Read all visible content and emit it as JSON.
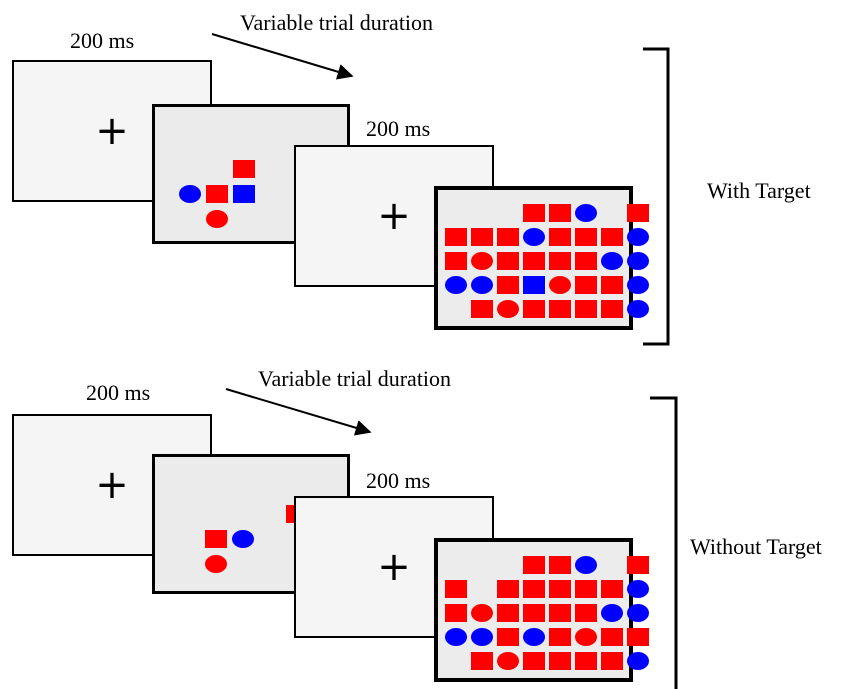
{
  "colors": {
    "red": "#ff0000",
    "blue": "#0000ff",
    "frame": "#000000"
  },
  "fixation_symbol": "+",
  "conditions": [
    {
      "condition_label": "With Target",
      "duration_first": "200 ms",
      "duration_variable": "Variable trial duration",
      "duration_second": "200 ms",
      "cue_items": [
        {
          "shape": "square",
          "color": "red",
          "col": 2,
          "row": 0
        },
        {
          "shape": "circle",
          "color": "blue",
          "col": 0,
          "row": 1
        },
        {
          "shape": "square",
          "color": "red",
          "col": 1,
          "row": 1
        },
        {
          "shape": "square",
          "color": "blue",
          "col": 2,
          "row": 1
        },
        {
          "shape": "circle",
          "color": "red",
          "col": 1,
          "row": 2
        }
      ],
      "search_grid": [
        [
          "",
          "",
          "",
          "rs",
          "rs",
          "bc",
          "",
          "rs"
        ],
        [
          "rs",
          "rs",
          "rs",
          "bc",
          "rs",
          "rs",
          "rs",
          "bc"
        ],
        [
          "rs",
          "rc",
          "rs",
          "rs",
          "rs",
          "rs",
          "bc",
          "bc"
        ],
        [
          "bc",
          "bc",
          "rs",
          "bs",
          "rc",
          "rs",
          "rs",
          "bc"
        ],
        [
          "",
          "rs",
          "rc",
          "rs",
          "rs",
          "rs",
          "rs",
          "bc"
        ]
      ]
    },
    {
      "condition_label": "Without Target",
      "duration_first": "200 ms",
      "duration_variable": "Variable trial duration",
      "duration_second": "200 ms",
      "cue_items": [
        {
          "shape": "square",
          "color": "red",
          "col": 3,
          "row": 0
        },
        {
          "shape": "square",
          "color": "red",
          "col": 0,
          "row": 1
        },
        {
          "shape": "circle",
          "color": "blue",
          "col": 1,
          "row": 1
        },
        {
          "shape": "circle",
          "color": "red",
          "col": 0,
          "row": 2
        }
      ],
      "search_grid": [
        [
          "",
          "",
          "",
          "rs",
          "rs",
          "bc",
          "",
          "rs"
        ],
        [
          "rs",
          "",
          "rs",
          "rs",
          "rs",
          "rs",
          "rs",
          "bc"
        ],
        [
          "rs",
          "rc",
          "rs",
          "rs",
          "rs",
          "rs",
          "bc",
          "bc"
        ],
        [
          "bc",
          "bc",
          "rs",
          "bc",
          "rs",
          "rc",
          "rs",
          "rs"
        ],
        [
          "",
          "rs",
          "rc",
          "rs",
          "rs",
          "rs",
          "rs",
          "bc"
        ]
      ]
    }
  ]
}
